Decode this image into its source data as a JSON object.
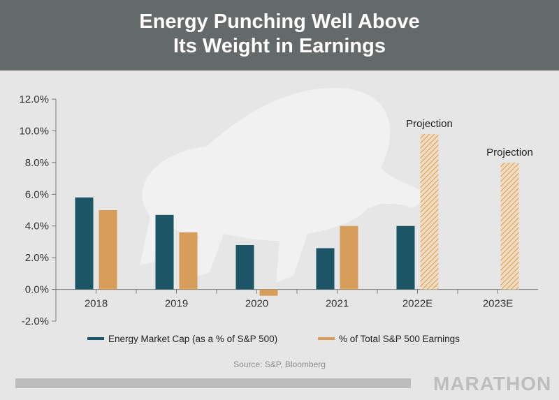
{
  "header": {
    "title_line1": "Energy Punching Well Above",
    "title_line2": "Its Weight in Earnings"
  },
  "chart_data": {
    "type": "bar",
    "categories": [
      "2018",
      "2019",
      "2020",
      "2021",
      "2022E",
      "2023E"
    ],
    "series": [
      {
        "name": "Energy Market Cap (as a % of S&P 500)",
        "color": "#1b5566",
        "values": [
          5.8,
          4.7,
          2.8,
          2.6,
          4.0,
          null
        ]
      },
      {
        "name": "% of Total S&P 500 Earnings",
        "color": "#d69e58",
        "values": [
          5.0,
          3.6,
          -0.4,
          4.0,
          9.8,
          8.0
        ],
        "projected": [
          false,
          false,
          false,
          false,
          true,
          true
        ]
      }
    ],
    "projection_label": "Projection",
    "yticks": [
      "12.0%",
      "10.0%",
      "8.0%",
      "6.0%",
      "4.0%",
      "2.0%",
      "0.0%",
      "-2.0%"
    ],
    "ylim": [
      -2,
      12
    ],
    "legend_position": "bottom"
  },
  "footer": {
    "source": "Source: S&P, Bloomberg",
    "brand": "MARATHON"
  }
}
